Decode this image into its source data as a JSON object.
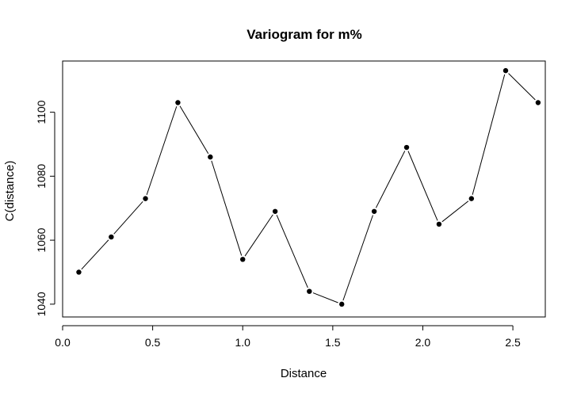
{
  "chart_data": {
    "type": "line",
    "title": "Variogram for m%",
    "xlabel": "Distance",
    "ylabel": "C(distance)",
    "xlim": [
      0.0,
      2.68
    ],
    "ylim": [
      1036,
      1116
    ],
    "x_ticks": [
      "0.0",
      "0.5",
      "1.0",
      "1.5",
      "2.0",
      "2.5"
    ],
    "y_ticks": [
      "1040",
      "1060",
      "1080",
      "1100"
    ],
    "grid": false,
    "legend": "none",
    "marker": "filled-circle",
    "line_color": "#000000",
    "point_color": "#000000",
    "x": [
      0.09,
      0.27,
      0.46,
      0.64,
      0.82,
      1.0,
      1.18,
      1.37,
      1.55,
      1.73,
      1.91,
      2.09,
      2.27,
      2.46,
      2.64
    ],
    "y": [
      1050,
      1061,
      1073,
      1103,
      1086,
      1054,
      1069,
      1044,
      1040,
      1069,
      1089,
      1065,
      1073,
      1113,
      1103
    ]
  }
}
